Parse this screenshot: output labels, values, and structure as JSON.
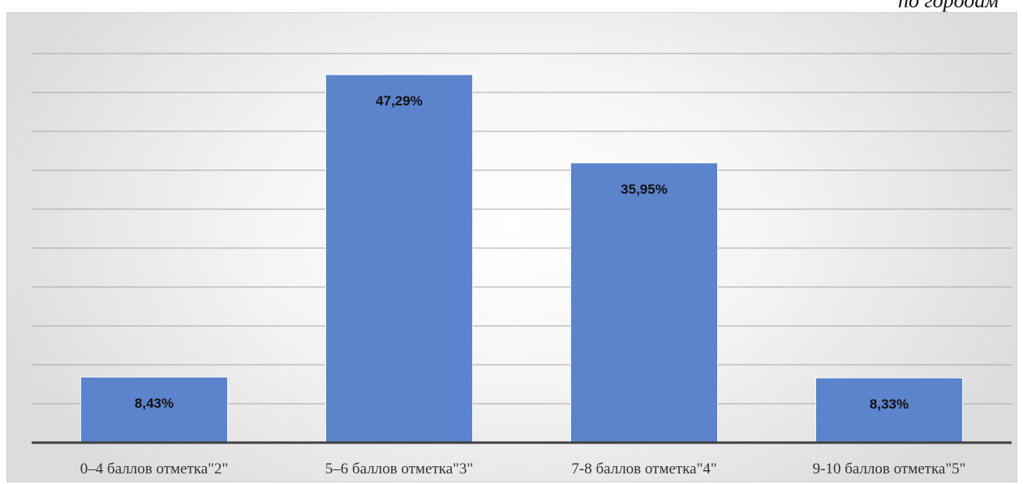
{
  "caption_cut": "по городам",
  "chart_data": {
    "type": "bar",
    "categories": [
      "0–4 баллов отметка\"2\"",
      "5–6 баллов отметка\"3\"",
      "7-8 баллов отметка\"4\"",
      "9-10 баллов отметка\"5\""
    ],
    "values": [
      8.43,
      47.29,
      35.95,
      8.33
    ],
    "data_labels": [
      "8,43%",
      "47,29%",
      "35,95%",
      "8,33%"
    ],
    "ylim": [
      0,
      50
    ],
    "grid": true,
    "bar_color": "#5b84cd",
    "gridline_color": "#a6a6a6",
    "axis_color": "#404040"
  }
}
